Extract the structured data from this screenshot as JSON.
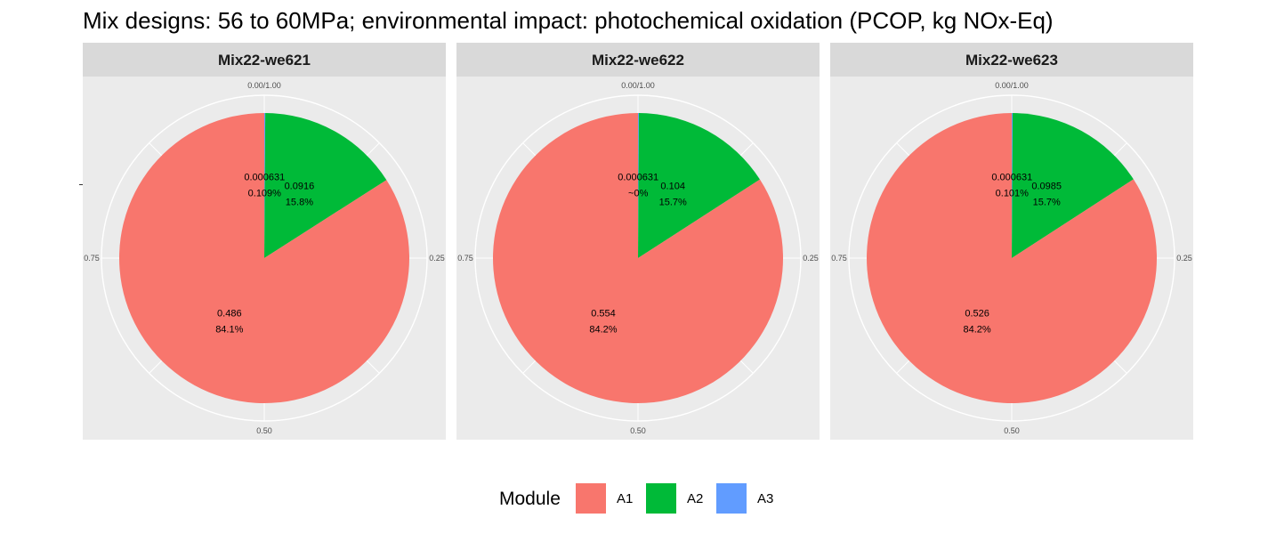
{
  "title": "Mix designs: 56 to 60MPa; environmental impact: photochemical oxidation (PCOP, kg NOx-Eq)",
  "colors": {
    "A1": "#F8766D",
    "A2": "#00BA38",
    "A3": "#619CFF",
    "panel_bg": "#EBEBEB",
    "strip_bg": "#D9D9D9",
    "grid": "#FFFFFF"
  },
  "legend": {
    "title": "Module",
    "items": [
      {
        "label": "A1",
        "color": "#F8766D"
      },
      {
        "label": "A2",
        "color": "#00BA38"
      },
      {
        "label": "A3",
        "color": "#619CFF"
      }
    ]
  },
  "chart_data": {
    "type": "pie",
    "theta_ticks": [
      "0.00/1.00",
      "0.25",
      "0.50",
      "0.75"
    ],
    "legend_position": "bottom",
    "grid": true,
    "facets": [
      {
        "title": "Mix22-we621",
        "slices": [
          {
            "module": "A3",
            "value": 0.000631,
            "percent": "0.109%"
          },
          {
            "module": "A2",
            "value": 0.0916,
            "percent": "15.8%"
          },
          {
            "module": "A1",
            "value": 0.486,
            "percent": "84.1%"
          }
        ]
      },
      {
        "title": "Mix22-we622",
        "slices": [
          {
            "module": "A3",
            "value": 0.000631,
            "percent": "~0%"
          },
          {
            "module": "A2",
            "value": 0.104,
            "percent": "15.7%"
          },
          {
            "module": "A1",
            "value": 0.554,
            "percent": "84.2%"
          }
        ]
      },
      {
        "title": "Mix22-we623",
        "slices": [
          {
            "module": "A3",
            "value": 0.000631,
            "percent": "0.101%"
          },
          {
            "module": "A2",
            "value": 0.0985,
            "percent": "15.7%"
          },
          {
            "module": "A1",
            "value": 0.526,
            "percent": "84.2%"
          }
        ]
      }
    ]
  }
}
